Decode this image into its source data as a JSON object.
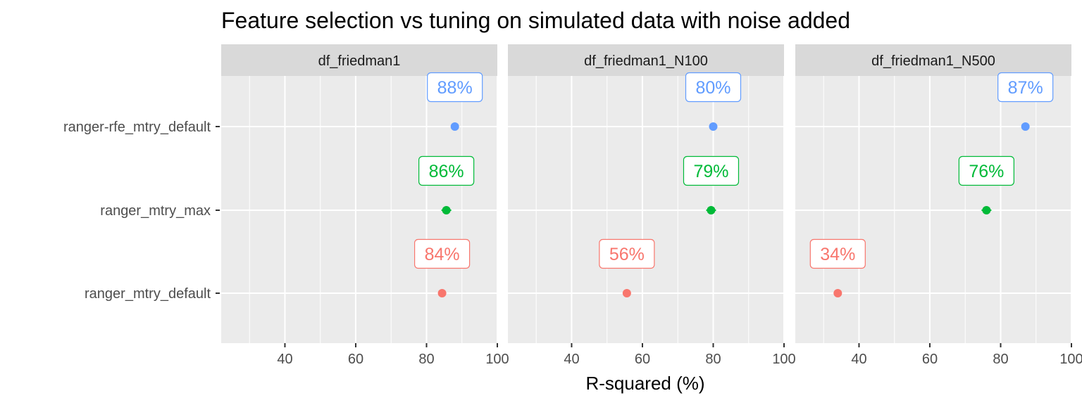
{
  "chart_data": {
    "type": "dot",
    "title": "Feature selection vs tuning on simulated data with noise added",
    "xlabel": "R-squared (%)",
    "ylabel": "",
    "xlim": [
      22,
      100
    ],
    "x_ticks": [
      40,
      60,
      80,
      100
    ],
    "x_tick_labels": [
      "40",
      "60",
      "80",
      "100"
    ],
    "grid": true,
    "categories": [
      "ranger-rfe_mtry_default",
      "ranger_mtry_max",
      "ranger_mtry_default"
    ],
    "facets": [
      "df_friedman1",
      "df_friedman1_N100",
      "df_friedman1_N500"
    ],
    "colors": {
      "ranger-rfe_mtry_default": "#619CFF",
      "ranger_mtry_max": "#00BA38",
      "ranger_mtry_default": "#F8766D"
    },
    "panel_background": "#EBEBEB",
    "strip_background": "#D9D9D9",
    "series": [
      {
        "facet": "df_friedman1",
        "values": [
          {
            "category": "ranger-rfe_mtry_default",
            "x": 88,
            "label": "88%"
          },
          {
            "category": "ranger_mtry_max",
            "x": 85.6,
            "label": "86%"
          },
          {
            "category": "ranger_mtry_default",
            "x": 84.4,
            "label": "84%"
          }
        ]
      },
      {
        "facet": "df_friedman1_N100",
        "values": [
          {
            "category": "ranger-rfe_mtry_default",
            "x": 80,
            "label": "80%"
          },
          {
            "category": "ranger_mtry_max",
            "x": 79.4,
            "label": "79%"
          },
          {
            "category": "ranger_mtry_default",
            "x": 55.6,
            "label": "56%"
          }
        ]
      },
      {
        "facet": "df_friedman1_N500",
        "values": [
          {
            "category": "ranger-rfe_mtry_default",
            "x": 87,
            "label": "87%"
          },
          {
            "category": "ranger_mtry_max",
            "x": 76,
            "label": "76%"
          },
          {
            "category": "ranger_mtry_default",
            "x": 34,
            "label": "34%"
          }
        ]
      }
    ]
  }
}
